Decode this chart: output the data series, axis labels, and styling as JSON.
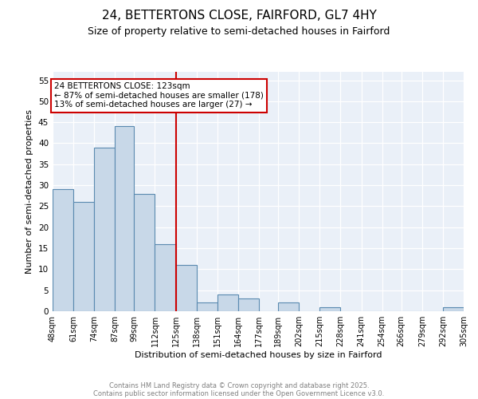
{
  "title1": "24, BETTERTONS CLOSE, FAIRFORD, GL7 4HY",
  "title2": "Size of property relative to semi-detached houses in Fairford",
  "xlabel": "Distribution of semi-detached houses by size in Fairford",
  "ylabel": "Number of semi-detached properties",
  "bins": [
    48,
    61,
    74,
    87,
    99,
    112,
    125,
    138,
    151,
    164,
    177,
    189,
    202,
    215,
    228,
    241,
    254,
    266,
    279,
    292,
    305
  ],
  "counts": [
    29,
    26,
    39,
    44,
    28,
    16,
    11,
    2,
    4,
    3,
    0,
    2,
    0,
    1,
    0,
    0,
    0,
    0,
    0,
    1
  ],
  "bar_color": "#c8d8e8",
  "bar_edge_color": "#5a8ab0",
  "vline_x": 125,
  "vline_color": "#cc0000",
  "annotation_text": "24 BETTERTONS CLOSE: 123sqm\n← 87% of semi-detached houses are smaller (178)\n13% of semi-detached houses are larger (27) →",
  "annotation_box_color": "white",
  "annotation_box_edge": "#cc0000",
  "ylim": [
    0,
    57
  ],
  "yticks": [
    0,
    5,
    10,
    15,
    20,
    25,
    30,
    35,
    40,
    45,
    50,
    55
  ],
  "background_color": "#eaf0f8",
  "footer_line1": "Contains HM Land Registry data © Crown copyright and database right 2025.",
  "footer_line2": "Contains public sector information licensed under the Open Government Licence v3.0.",
  "title1_fontsize": 11,
  "title2_fontsize": 9,
  "tick_label_fontsize": 7,
  "axis_label_fontsize": 8,
  "annotation_fontsize": 7.5,
  "footer_fontsize": 6
}
